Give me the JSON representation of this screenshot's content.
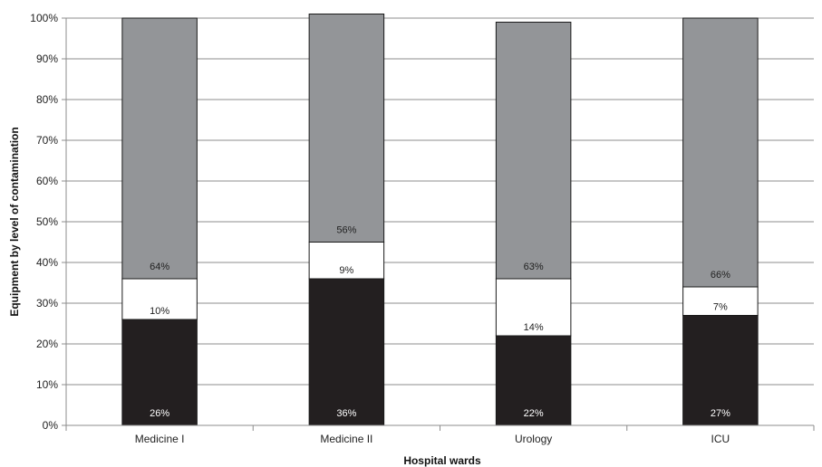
{
  "chart_data": {
    "type": "bar",
    "stacked": true,
    "percent_stacked": true,
    "title": "",
    "xlabel": "Hospital wards",
    "ylabel": "Equipment by level of contamination",
    "ylim": [
      0,
      100
    ],
    "y_ticks": [
      "0%",
      "10%",
      "20%",
      "30%",
      "40%",
      "50%",
      "60%",
      "70%",
      "80%",
      "90%",
      "100%"
    ],
    "grid": "horizontal",
    "legend": "none",
    "categories": [
      "Medicine I",
      "Medicine II",
      "Urology",
      "ICU"
    ],
    "series": [
      {
        "values": [
          26,
          36,
          22,
          27
        ],
        "labels": [
          "26%",
          "36%",
          "22%",
          "27%"
        ],
        "color": "#231f20",
        "label_color": "#ffffff"
      },
      {
        "values": [
          10,
          9,
          14,
          7
        ],
        "labels": [
          "10%",
          "9%",
          "14%",
          "7%"
        ],
        "color": "#ffffff",
        "label_color": "#222222"
      },
      {
        "values": [
          64,
          56,
          63,
          66
        ],
        "labels": [
          "64%",
          "56%",
          "63%",
          "66%"
        ],
        "color": "#939598",
        "label_color": "#222222"
      }
    ]
  }
}
